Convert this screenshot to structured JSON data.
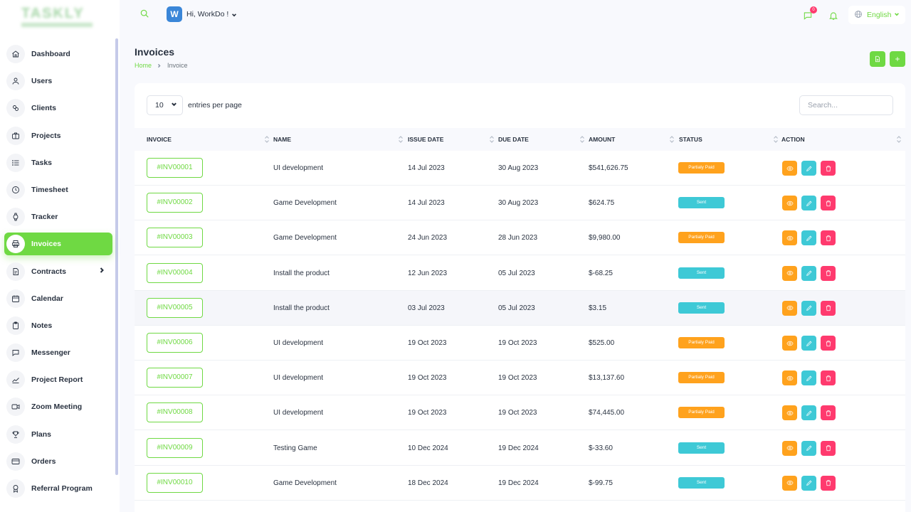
{
  "app": {
    "logo_text": "TASKLY"
  },
  "header": {
    "greeting": "Hi, WorkDo !",
    "avatar_letter": "W",
    "message_count": "0",
    "language": "English"
  },
  "sidebar": {
    "items": [
      {
        "label": "Dashboard",
        "icon": "home-icon"
      },
      {
        "label": "Users",
        "icon": "user-icon"
      },
      {
        "label": "Clients",
        "icon": "clients-icon"
      },
      {
        "label": "Projects",
        "icon": "projects-icon"
      },
      {
        "label": "Tasks",
        "icon": "list-icon"
      },
      {
        "label": "Timesheet",
        "icon": "clock-icon"
      },
      {
        "label": "Tracker",
        "icon": "watch-icon"
      },
      {
        "label": "Invoices",
        "icon": "printer-icon",
        "active": true
      },
      {
        "label": "Contracts",
        "icon": "contract-icon",
        "has_children": true
      },
      {
        "label": "Calendar",
        "icon": "calendar-icon"
      },
      {
        "label": "Notes",
        "icon": "clipboard-icon"
      },
      {
        "label": "Messenger",
        "icon": "chat-icon"
      },
      {
        "label": "Project Report",
        "icon": "chart-line-icon"
      },
      {
        "label": "Zoom Meeting",
        "icon": "video-icon"
      },
      {
        "label": "Plans",
        "icon": "trophy-icon"
      },
      {
        "label": "Orders",
        "icon": "credit-card-icon"
      },
      {
        "label": "Referral Program",
        "icon": "badge-icon"
      }
    ]
  },
  "page": {
    "title": "Invoices",
    "breadcrumb": {
      "home": "Home",
      "current": "Invoice"
    }
  },
  "table": {
    "entries_value": "10",
    "entries_label": "entries per page",
    "search_placeholder": "Search...",
    "columns": [
      "INVOICE",
      "NAME",
      "ISSUE DATE",
      "DUE DATE",
      "AMOUNT",
      "STATUS",
      "ACTION"
    ],
    "rows": [
      {
        "invoice": "#INV00001",
        "name": "UI development",
        "issue_date": "14 Jul 2023",
        "due_date": "30 Aug 2023",
        "amount": "$541,626.75",
        "status": "Partialy Paid",
        "status_type": "partial"
      },
      {
        "invoice": "#INV00002",
        "name": "Game Development",
        "issue_date": "14 Jul 2023",
        "due_date": "30 Aug 2023",
        "amount": "$624.75",
        "status": "Sent",
        "status_type": "sent"
      },
      {
        "invoice": "#INV00003",
        "name": "Game Development",
        "issue_date": "24 Jun 2023",
        "due_date": "28 Jun 2023",
        "amount": "$9,980.00",
        "status": "Partialy Paid",
        "status_type": "partial"
      },
      {
        "invoice": "#INV00004",
        "name": "Install the product",
        "issue_date": "12 Jun 2023",
        "due_date": "05 Jul 2023",
        "amount": "$-68.25",
        "status": "Sent",
        "status_type": "sent"
      },
      {
        "invoice": "#INV00005",
        "name": "Install the product",
        "issue_date": "03 Jul 2023",
        "due_date": "05 Jul 2023",
        "amount": "$3.15",
        "status": "Sent",
        "status_type": "sent"
      },
      {
        "invoice": "#INV00006",
        "name": "UI development",
        "issue_date": "19 Oct 2023",
        "due_date": "19 Oct 2023",
        "amount": "$525.00",
        "status": "Partialy Paid",
        "status_type": "partial"
      },
      {
        "invoice": "#INV00007",
        "name": "UI development",
        "issue_date": "19 Oct 2023",
        "due_date": "19 Oct 2023",
        "amount": "$13,137.60",
        "status": "Partialy Paid",
        "status_type": "partial"
      },
      {
        "invoice": "#INV00008",
        "name": "UI development",
        "issue_date": "19 Oct 2023",
        "due_date": "19 Oct 2023",
        "amount": "$74,445.00",
        "status": "Partialy Paid",
        "status_type": "partial"
      },
      {
        "invoice": "#INV00009",
        "name": "Testing Game",
        "issue_date": "10 Dec 2024",
        "due_date": "19 Dec 2024",
        "amount": "$-33.60",
        "status": "Sent",
        "status_type": "sent"
      },
      {
        "invoice": "#INV00010",
        "name": "Game Development",
        "issue_date": "18 Dec 2024",
        "due_date": "19 Dec 2024",
        "amount": "$-99.75",
        "status": "Sent",
        "status_type": "sent"
      }
    ]
  },
  "colors": {
    "accent": "#6fd943",
    "partial": "#ffa21d",
    "sent": "#3ec9d6",
    "danger": "#ff3a6e"
  }
}
